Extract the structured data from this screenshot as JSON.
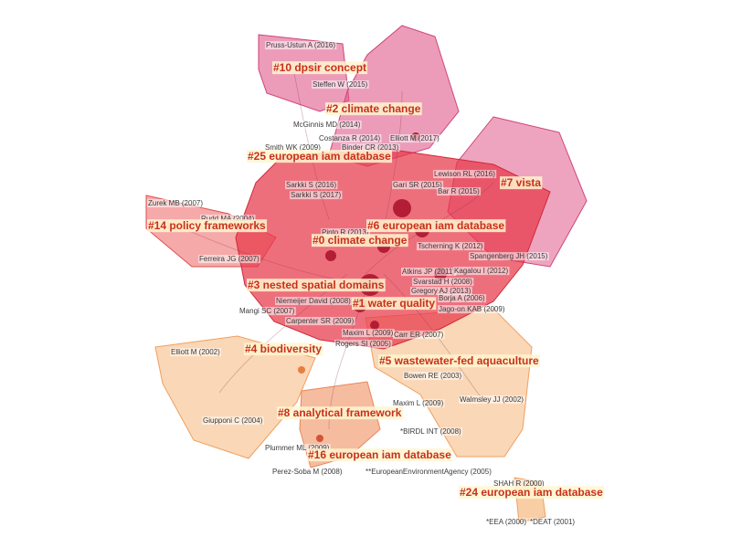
{
  "cluster_labels": [
    "#10 dpsir concept",
    "#2 climate change",
    "#25 european iam database",
    "#7 vista",
    "#14 policy frameworks",
    "#6 european iam database",
    "#0 climate change",
    "#3 nested spatial domains",
    "#1 water quality",
    "#4 biodiversity",
    "#5 wastewater-fed aquaculture",
    "#8 analytical framework",
    "#16 european iam database",
    "#24 european iam database"
  ],
  "node_labels": [
    "Pruss-Ustun A (2016)",
    "Steffen W (2015)",
    "McGinnis MD (2014)",
    "Costanza R (2014)",
    "Elliott M (2017)",
    "Binder CR (2013)",
    "Smith WK (2009)",
    "Lewison RL (2016)",
    "Sarkki S (2016)",
    "Gari SR (2015)",
    "Bar R (2015)",
    "Sarkki S (2017)",
    "Zurek MB (2007)",
    "Rudd MA (2004)",
    "Pinto R (2013)",
    "Tscherning K (2012)",
    "Spangenberg JH (2015)",
    "Ferreira JG (2007)",
    "Atkins JP (2011)",
    "Kagalou I (2012)",
    "Svarstad H (2008)",
    "Gregory AJ (2013)",
    "Niemeijer David (2008)",
    "Borja A (2006)",
    "Mangi SC (2007)",
    "Jago-on KAB (2009)",
    "Carpenter SR (2009)",
    "Maxim L (2009)",
    "Carr ER (2007)",
    "Rogers SI (2005)",
    "Elliott M (2002)",
    "Bowen RE (2003)",
    "Walmsley JJ (2002)",
    "Maxim L (2009)",
    "Giupponi C (2004)",
    "*BIRDL INT (2008)",
    "Plummer ML (2009)",
    "Perez-Soba M (2008)",
    "**EuropeanEnvironmentAgency (2005)",
    "SHAH R (2000)",
    "*EEA (2000)",
    "*DEAT (2001)"
  ]
}
